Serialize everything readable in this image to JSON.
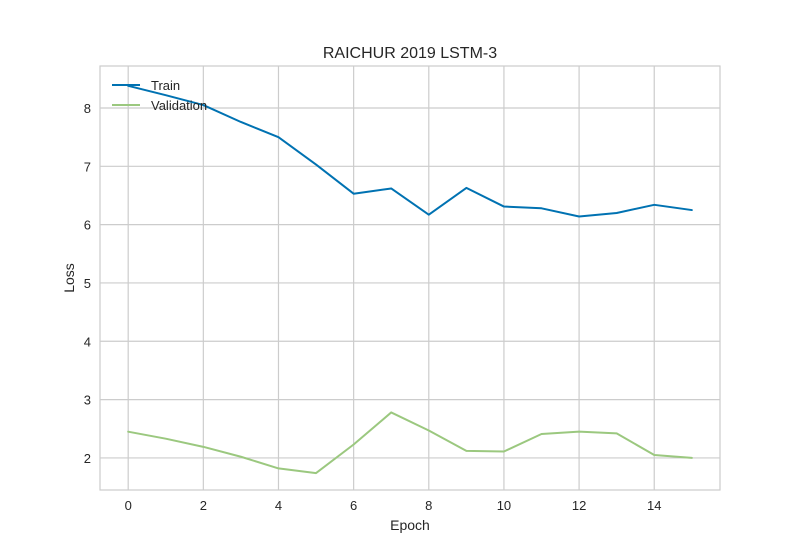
{
  "chart_data": {
    "type": "line",
    "title": "RAICHUR 2019 LSTM-3",
    "xlabel": "Epoch",
    "ylabel": "Loss",
    "xlim": [
      -0.75,
      15.75
    ],
    "ylim": [
      1.45,
      8.72
    ],
    "x_ticks": [
      0,
      2,
      4,
      6,
      8,
      10,
      12,
      14
    ],
    "y_ticks": [
      2,
      3,
      4,
      5,
      6,
      7,
      8
    ],
    "grid": true,
    "legend_position": "top-left",
    "x": [
      0,
      1,
      2,
      3,
      4,
      5,
      6,
      7,
      8,
      9,
      10,
      11,
      12,
      13,
      14,
      15
    ],
    "series": [
      {
        "name": "Train",
        "color": "#0072b2",
        "values": [
          8.38,
          8.22,
          8.05,
          7.76,
          7.5,
          7.03,
          6.53,
          6.62,
          6.17,
          6.63,
          6.31,
          6.28,
          6.14,
          6.2,
          6.34,
          6.25
        ]
      },
      {
        "name": "Validation",
        "color": "#9bc87f",
        "values": [
          2.45,
          2.33,
          2.19,
          2.02,
          1.82,
          1.74,
          2.23,
          2.78,
          2.47,
          2.12,
          2.11,
          2.41,
          2.45,
          2.42,
          2.05,
          2.0
        ]
      }
    ]
  }
}
